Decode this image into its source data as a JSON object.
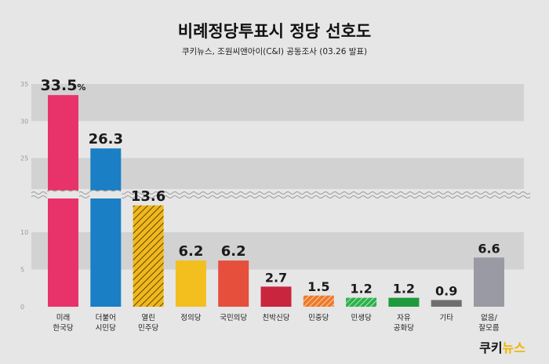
{
  "title": "비례정당투표시 정당 선호도",
  "subtitle": "쿠키뉴스, 조원씨앤아이(C&I) 공동조사 (03.26 발표)",
  "logo": {
    "part1": "쿠키",
    "part2": "뉴스"
  },
  "colors": {
    "background": "#e6e6e6",
    "band": "#d2d2d2",
    "accent_logo": "#f0b400"
  },
  "chart_data": {
    "type": "bar",
    "title": "비례정당투표시 정당 선호도",
    "subtitle": "쿠키뉴스, 조원씨앤아이(C&I) 공동조사 (03.26 발표)",
    "axis_break": true,
    "yticks": [
      "0",
      "5",
      "10",
      "25",
      "30",
      "35"
    ],
    "categories": [
      [
        "미래",
        "한국당"
      ],
      [
        "더불어",
        "시민당"
      ],
      [
        "열린",
        "민주당"
      ],
      [
        "정의당"
      ],
      [
        "국민의당"
      ],
      [
        "친박신당"
      ],
      [
        "민중당"
      ],
      [
        "민생당"
      ],
      [
        "자유",
        "공화당"
      ],
      [
        "기타"
      ],
      [
        "없음/",
        "잘모름"
      ]
    ],
    "values": [
      33.5,
      26.3,
      13.6,
      6.2,
      6.2,
      2.7,
      1.5,
      1.2,
      1.2,
      0.9,
      6.6
    ],
    "value_labels": [
      "33.5",
      "26.3",
      "13.6",
      "6.2",
      "6.2",
      "2.7",
      "1.5",
      "1.2",
      "1.2",
      "0.9",
      "6.6"
    ],
    "first_value_suffix": "%",
    "bar_colors": [
      "#e8336a",
      "#1a7fc4",
      "#f0b81c",
      "#f3bf1f",
      "#e54f3c",
      "#c9253f",
      "#ef7a2a",
      "#2db34a",
      "#1f9a3e",
      "#6f6f6f",
      "#9a9aa4"
    ],
    "hatched": [
      false,
      false,
      true,
      false,
      false,
      false,
      true,
      true,
      false,
      false,
      false
    ]
  }
}
